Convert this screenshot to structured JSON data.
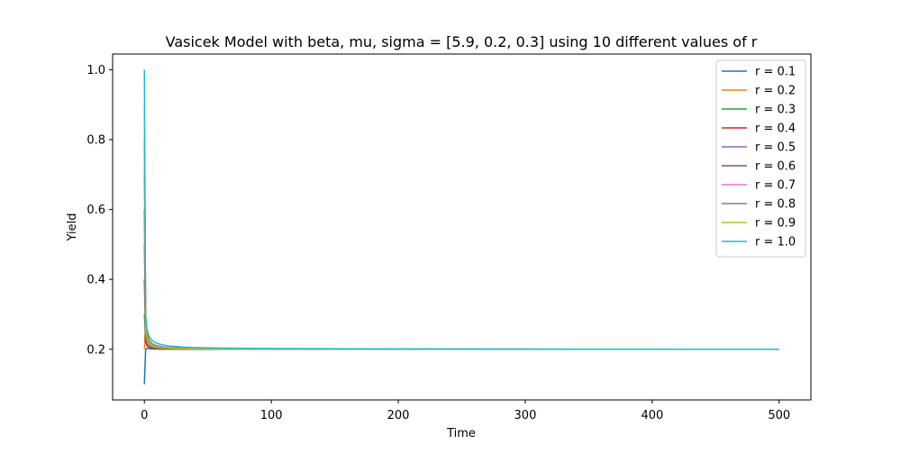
{
  "chart_data": {
    "type": "line",
    "title": "Vasicek Model with beta, mu, sigma = [5.9, 0.2, 0.3] using 10 different values of r",
    "xlabel": "Time",
    "ylabel": "Yield",
    "xlim": [
      -25,
      525
    ],
    "ylim": [
      0.055,
      1.045
    ],
    "xticks": [
      0,
      100,
      200,
      300,
      400,
      500
    ],
    "xtick_labels": [
      "0",
      "100",
      "200",
      "300",
      "400",
      "500"
    ],
    "yticks": [
      0.2,
      0.4,
      0.6,
      0.8,
      1.0
    ],
    "ytick_labels": [
      "0.2",
      "0.4",
      "0.6",
      "0.8",
      "1.0"
    ],
    "grid": false,
    "legend_position": "top-right",
    "model": {
      "beta": 5.9,
      "mu": 0.2,
      "sigma": 0.3
    },
    "x": [
      0,
      1,
      2,
      3,
      4,
      6,
      8,
      10,
      15,
      20,
      30,
      40,
      60,
      80,
      100,
      150,
      200,
      250,
      300,
      350,
      400,
      450,
      500
    ],
    "series": [
      {
        "name": "r = 0.1",
        "color": "#1f77b4",
        "values": [
          0.1,
          0.2,
          0.2029,
          0.2021,
          0.2016,
          0.2011,
          0.2008,
          0.2006,
          0.2004,
          0.2003,
          0.2002,
          0.2002,
          0.2001,
          0.2001,
          0.2001,
          0.2001,
          0.2,
          0.2,
          0.2,
          0.2,
          0.2,
          0.1999,
          0.1999
        ]
      },
      {
        "name": "r = 0.2",
        "color": "#ff7f0e",
        "values": [
          0.2,
          0.2667,
          0.2362,
          0.2244,
          0.2183,
          0.2124,
          0.2094,
          0.2075,
          0.2051,
          0.2038,
          0.2025,
          0.2019,
          0.2013,
          0.2009,
          0.2007,
          0.2005,
          0.2003,
          0.2002,
          0.2001,
          0.2001,
          0.2,
          0.2,
          0.1999
        ]
      },
      {
        "name": "r = 0.3",
        "color": "#2ca02c",
        "values": [
          0.3,
          0.2222,
          0.2105,
          0.2068,
          0.205,
          0.2033,
          0.2025,
          0.202,
          0.2013,
          0.201,
          0.2007,
          0.2005,
          0.2003,
          0.2002,
          0.2002,
          0.2001,
          0.2001,
          0.2,
          0.2,
          0.2,
          0.2,
          0.1999,
          0.1999
        ]
      },
      {
        "name": "r = 0.4",
        "color": "#d62728",
        "values": [
          0.4,
          0.2231,
          0.2113,
          0.2075,
          0.2056,
          0.2037,
          0.2028,
          0.2022,
          0.2015,
          0.2011,
          0.2007,
          0.2006,
          0.2004,
          0.2003,
          0.2002,
          0.2001,
          0.2001,
          0.2,
          0.2,
          0.2,
          0.2,
          0.1999,
          0.1999
        ]
      },
      {
        "name": "r = 0.5",
        "color": "#9467bd",
        "values": [
          0.5,
          0.24,
          0.2205,
          0.2136,
          0.2102,
          0.2068,
          0.2051,
          0.2041,
          0.2027,
          0.2021,
          0.2014,
          0.201,
          0.2007,
          0.2005,
          0.2004,
          0.2003,
          0.2002,
          0.2001,
          0.2001,
          0.2,
          0.2,
          0.1999,
          0.1999
        ]
      },
      {
        "name": "r = 0.6",
        "color": "#8c564b",
        "values": [
          0.6,
          0.225,
          0.2125,
          0.2083,
          0.2062,
          0.2042,
          0.2031,
          0.2025,
          0.2017,
          0.2013,
          0.2008,
          0.2006,
          0.2004,
          0.2003,
          0.2003,
          0.2002,
          0.2001,
          0.2001,
          0.2,
          0.2,
          0.2,
          0.1999,
          0.1999
        ]
      },
      {
        "name": "r = 0.7",
        "color": "#e377c2",
        "values": [
          0.7,
          0.26,
          0.232,
          0.2214,
          0.216,
          0.2106,
          0.208,
          0.2064,
          0.2043,
          0.2032,
          0.2021,
          0.2016,
          0.2011,
          0.2008,
          0.2006,
          0.2004,
          0.2003,
          0.2002,
          0.2001,
          0.2001,
          0.2,
          0.1999,
          0.1999
        ]
      },
      {
        "name": "r = 0.8",
        "color": "#7f7f7f",
        "values": [
          0.8,
          0.29,
          0.2495,
          0.2329,
          0.2245,
          0.2164,
          0.2123,
          0.2098,
          0.2066,
          0.205,
          0.2033,
          0.2025,
          0.2017,
          0.2012,
          0.201,
          0.2006,
          0.2004,
          0.2003,
          0.2002,
          0.2001,
          0.2,
          0.2,
          0.1999
        ]
      },
      {
        "name": "r = 0.9",
        "color": "#bcbd22",
        "values": [
          0.9,
          0.2571,
          0.2301,
          0.2201,
          0.2151,
          0.21,
          0.2075,
          0.206,
          0.204,
          0.203,
          0.202,
          0.2015,
          0.201,
          0.2008,
          0.2006,
          0.2004,
          0.2003,
          0.2002,
          0.2001,
          0.2001,
          0.2,
          0.1999,
          0.1999
        ]
      },
      {
        "name": "r = 1.0",
        "color": "#17becf",
        "values": [
          1.0,
          0.3,
          0.26,
          0.2438,
          0.2347,
          0.2254,
          0.2202,
          0.2168,
          0.212,
          0.2093,
          0.2065,
          0.205,
          0.2036,
          0.2028,
          0.2023,
          0.2015,
          0.2011,
          0.2008,
          0.2006,
          0.2004,
          0.2002,
          0.2001,
          0.1999
        ]
      }
    ]
  }
}
